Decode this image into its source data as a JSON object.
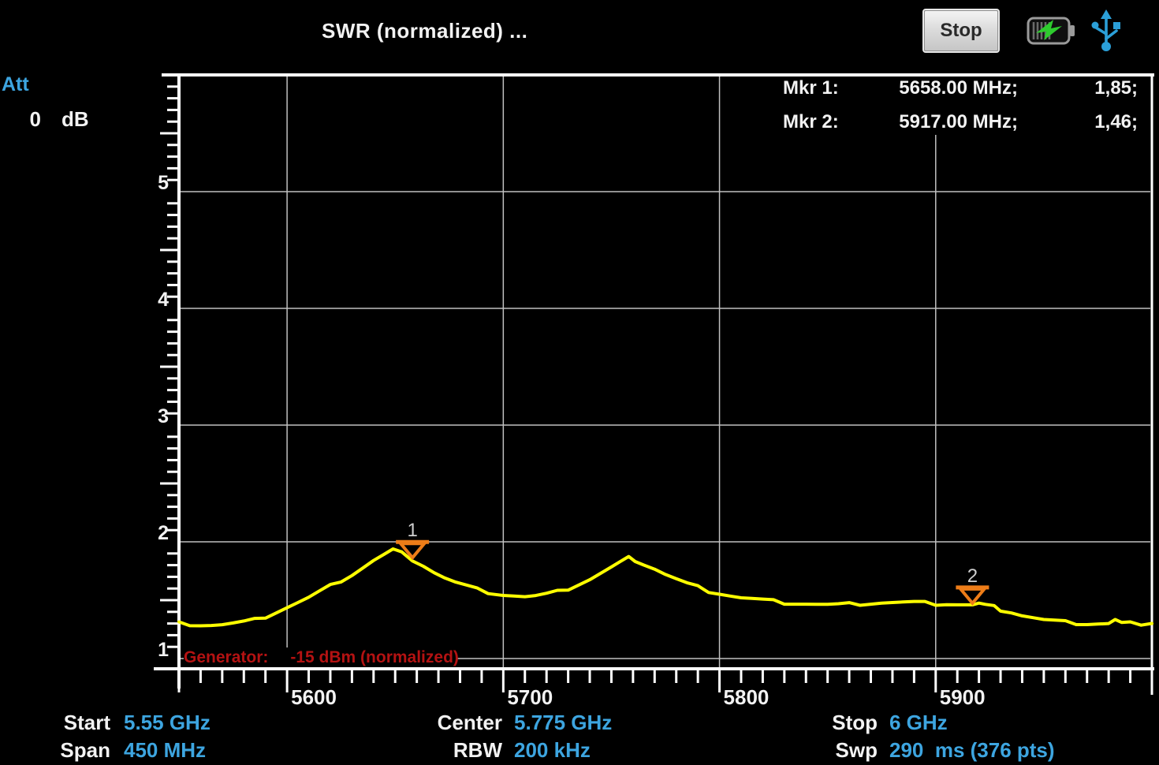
{
  "header": {
    "title": "SWR (normalized) ...",
    "stop_button": "Stop",
    "battery_icon": "battery-charging",
    "usb_icon": "usb-connected"
  },
  "attenuation": {
    "label": "Att",
    "value": "0",
    "unit": "dB"
  },
  "markers_readout": [
    {
      "name": "Mkr 1:",
      "freq": "5658.00 MHz;",
      "value": "1,85;"
    },
    {
      "name": "Mkr 2:",
      "freq": "5917.00 MHz;",
      "value": "1,46;"
    }
  ],
  "generator": {
    "label": "Generator:",
    "value": "-15 dBm (normalized)"
  },
  "status_bar": {
    "start": {
      "label": "Start",
      "value": "5.55 GHz"
    },
    "span": {
      "label": "Span",
      "value": "450 MHz"
    },
    "center": {
      "label": "Center",
      "value": "5.775 GHz"
    },
    "rbw": {
      "label": "RBW",
      "value": "200 kHz"
    },
    "stop": {
      "label": "Stop",
      "value": "6 GHz"
    },
    "swp": {
      "label": "Swp",
      "value": "290  ms (376 pts)"
    }
  },
  "colors": {
    "trace": "#ffff00",
    "marker_orange": "#ee7d18",
    "value_blue": "#3da5e0",
    "alert_red": "#b41212",
    "grid_gray": "#c0c0c0",
    "axis_white": "#ffffff",
    "usb_blue": "#2b9fd8",
    "battery_green": "#2ecc2e"
  },
  "chart_data": {
    "type": "line",
    "title": "SWR (normalized)",
    "x_unit": "MHz",
    "x_range": [
      5550,
      6000
    ],
    "y_range_displayed": [
      0.92,
      6.0
    ],
    "x_ticks_labeled": [
      5600,
      5700,
      5800,
      5900
    ],
    "y_ticks_labeled": [
      1,
      2,
      3,
      4,
      5
    ],
    "x_minor_tick_mhz": 10,
    "y_minor_tick": 0.1,
    "grid": true,
    "legend": "none",
    "markers": [
      {
        "id": "1",
        "freq_mhz": 5658,
        "swr": 1.85
      },
      {
        "id": "2",
        "freq_mhz": 5917,
        "swr": 1.46
      }
    ],
    "trace": [
      [
        5550,
        1.3
      ],
      [
        5555,
        1.295
      ],
      [
        5560,
        1.29
      ],
      [
        5565,
        1.288
      ],
      [
        5570,
        1.29
      ],
      [
        5575,
        1.3
      ],
      [
        5580,
        1.312
      ],
      [
        5585,
        1.33
      ],
      [
        5590,
        1.36
      ],
      [
        5595,
        1.4
      ],
      [
        5600,
        1.44
      ],
      [
        5605,
        1.48
      ],
      [
        5610,
        1.52
      ],
      [
        5615,
        1.57
      ],
      [
        5620,
        1.62
      ],
      [
        5625,
        1.67
      ],
      [
        5630,
        1.72
      ],
      [
        5635,
        1.78
      ],
      [
        5640,
        1.84
      ],
      [
        5645,
        1.89
      ],
      [
        5649,
        1.93
      ],
      [
        5653,
        1.9
      ],
      [
        5658,
        1.85
      ],
      [
        5663,
        1.8
      ],
      [
        5668,
        1.74
      ],
      [
        5673,
        1.69
      ],
      [
        5678,
        1.65
      ],
      [
        5683,
        1.62
      ],
      [
        5688,
        1.59
      ],
      [
        5693,
        1.57
      ],
      [
        5700,
        1.55
      ],
      [
        5705,
        1.54
      ],
      [
        5710,
        1.53
      ],
      [
        5715,
        1.535
      ],
      [
        5720,
        1.55
      ],
      [
        5725,
        1.57
      ],
      [
        5730,
        1.6
      ],
      [
        5735,
        1.64
      ],
      [
        5740,
        1.68
      ],
      [
        5745,
        1.73
      ],
      [
        5750,
        1.78
      ],
      [
        5754,
        1.82
      ],
      [
        5758,
        1.86
      ],
      [
        5761,
        1.845
      ],
      [
        5765,
        1.81
      ],
      [
        5770,
        1.77
      ],
      [
        5775,
        1.72
      ],
      [
        5780,
        1.68
      ],
      [
        5785,
        1.64
      ],
      [
        5790,
        1.61
      ],
      [
        5795,
        1.58
      ],
      [
        5800,
        1.56
      ],
      [
        5805,
        1.54
      ],
      [
        5810,
        1.52
      ],
      [
        5815,
        1.51
      ],
      [
        5820,
        1.5
      ],
      [
        5825,
        1.49
      ],
      [
        5830,
        1.48
      ],
      [
        5835,
        1.475
      ],
      [
        5840,
        1.47
      ],
      [
        5845,
        1.465
      ],
      [
        5850,
        1.46
      ],
      [
        5855,
        1.46
      ],
      [
        5860,
        1.465
      ],
      [
        5865,
        1.47
      ],
      [
        5870,
        1.475
      ],
      [
        5875,
        1.48
      ],
      [
        5880,
        1.48
      ],
      [
        5885,
        1.48
      ],
      [
        5890,
        1.48
      ],
      [
        5895,
        1.475
      ],
      [
        5900,
        1.47
      ],
      [
        5905,
        1.47
      ],
      [
        5910,
        1.465
      ],
      [
        5917,
        1.46
      ],
      [
        5920,
        1.47
      ],
      [
        5923,
        1.455
      ],
      [
        5927,
        1.44
      ],
      [
        5930,
        1.42
      ],
      [
        5935,
        1.4
      ],
      [
        5940,
        1.37
      ],
      [
        5945,
        1.35
      ],
      [
        5950,
        1.33
      ],
      [
        5955,
        1.32
      ],
      [
        5960,
        1.31
      ],
      [
        5965,
        1.305
      ],
      [
        5970,
        1.3
      ],
      [
        5975,
        1.3
      ],
      [
        5980,
        1.3
      ],
      [
        5983,
        1.33
      ],
      [
        5986,
        1.3
      ],
      [
        5990,
        1.3
      ],
      [
        5995,
        1.3
      ],
      [
        6000,
        1.31
      ]
    ]
  }
}
